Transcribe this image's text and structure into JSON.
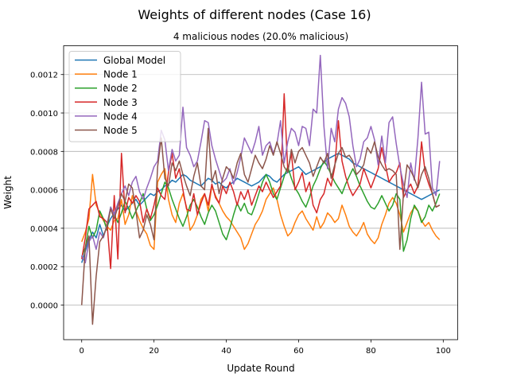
{
  "chart_data": {
    "type": "line",
    "title": "Weights of different nodes (Case 16)",
    "subtitle": "4 malicious nodes (20.0% malicious)",
    "xlabel": "Update Round",
    "ylabel": "Weight",
    "xlim": [
      -5,
      104
    ],
    "ylim": [
      -0.00018,
      0.00135
    ],
    "x_ticks": [
      0,
      20,
      40,
      60,
      80,
      100
    ],
    "y_ticks": [
      0.0,
      0.0002,
      0.0004,
      0.0006,
      0.0008,
      0.001,
      0.0012
    ],
    "y_tick_labels": [
      "0.0000",
      "0.0002",
      "0.0004",
      "0.0006",
      "0.0008",
      "0.0010",
      "0.0012"
    ],
    "grid": "horizontal",
    "legend_position": "top-left",
    "series": [
      {
        "name": "Global Model",
        "color": "#1f77b4",
        "values": [
          0.00022,
          0.00028,
          0.00034,
          0.00038,
          0.00035,
          0.00042,
          0.00036,
          0.00041,
          0.00045,
          0.00048,
          0.0005,
          0.00052,
          0.00049,
          0.00051,
          0.00053,
          0.00055,
          0.00052,
          0.00054,
          0.00056,
          0.00058,
          0.00057,
          0.00059,
          0.0006,
          0.00062,
          0.00063,
          0.00065,
          0.00064,
          0.00066,
          0.00068,
          0.00067,
          0.00065,
          0.00064,
          0.00063,
          0.00062,
          0.00064,
          0.00066,
          0.00065,
          0.00063,
          0.00064,
          0.00062,
          0.00061,
          0.00063,
          0.00064,
          0.00066,
          0.00065,
          0.00064,
          0.00063,
          0.00062,
          0.00063,
          0.00064,
          0.00066,
          0.00068,
          0.00067,
          0.00065,
          0.00064,
          0.00066,
          0.00068,
          0.00069,
          0.0007,
          0.00071,
          0.00072,
          0.0007,
          0.00068,
          0.00069,
          0.0007,
          0.00071,
          0.00072,
          0.00074,
          0.00076,
          0.00077,
          0.00078,
          0.00079,
          0.00078,
          0.00077,
          0.00076,
          0.00074,
          0.00073,
          0.00072,
          0.00071,
          0.0007,
          0.00069,
          0.00068,
          0.00067,
          0.00066,
          0.00065,
          0.00064,
          0.00063,
          0.00062,
          0.00061,
          0.0006,
          0.00059,
          0.00058,
          0.00057,
          0.00056,
          0.00055,
          0.00056,
          0.00057,
          0.00058,
          0.00059,
          0.0006
        ]
      },
      {
        "name": "Node 1",
        "color": "#ff7f0e",
        "values": [
          0.00033,
          0.00038,
          0.00045,
          0.00068,
          0.00052,
          0.00048,
          0.00044,
          0.00041,
          0.00039,
          0.00044,
          0.00045,
          0.00055,
          0.00042,
          0.00047,
          0.00057,
          0.00049,
          0.00044,
          0.0004,
          0.00037,
          0.00031,
          0.00029,
          0.00064,
          0.00068,
          0.00071,
          0.00055,
          0.00047,
          0.00043,
          0.00053,
          0.00058,
          0.00051,
          0.00039,
          0.00042,
          0.00047,
          0.00055,
          0.00058,
          0.00049,
          0.00062,
          0.00057,
          0.00053,
          0.00049,
          0.00046,
          0.00044,
          0.00041,
          0.00038,
          0.00035,
          0.00029,
          0.00032,
          0.00037,
          0.00042,
          0.00045,
          0.00049,
          0.00055,
          0.00058,
          0.00061,
          0.00055,
          0.00047,
          0.00041,
          0.00036,
          0.00038,
          0.00043,
          0.00047,
          0.00049,
          0.00045,
          0.00042,
          0.00039,
          0.00046,
          0.0004,
          0.00043,
          0.00048,
          0.00046,
          0.00043,
          0.00045,
          0.00052,
          0.00047,
          0.00041,
          0.00038,
          0.00036,
          0.00039,
          0.00043,
          0.00037,
          0.00034,
          0.00032,
          0.00035,
          0.00042,
          0.00047,
          0.00053,
          0.00056,
          0.00053,
          0.00047,
          0.00038,
          0.00043,
          0.00048,
          0.00051,
          0.00049,
          0.00044,
          0.00041,
          0.00043,
          0.00039,
          0.00036,
          0.00034
        ]
      },
      {
        "name": "Node 2",
        "color": "#2ca02c",
        "values": [
          0.00025,
          0.0003,
          0.00041,
          0.00035,
          0.00039,
          0.00049,
          0.00045,
          0.00039,
          0.00051,
          0.00047,
          0.00043,
          0.00048,
          0.00054,
          0.0005,
          0.00045,
          0.00049,
          0.00053,
          0.00058,
          0.0005,
          0.00044,
          0.00047,
          0.00052,
          0.00058,
          0.00064,
          0.00061,
          0.00055,
          0.0005,
          0.00045,
          0.00041,
          0.00046,
          0.00052,
          0.00055,
          0.00051,
          0.00046,
          0.00042,
          0.00048,
          0.00052,
          0.00049,
          0.00043,
          0.00037,
          0.00034,
          0.0004,
          0.00047,
          0.00053,
          0.00049,
          0.00053,
          0.00048,
          0.00047,
          0.00052,
          0.00058,
          0.00064,
          0.00068,
          0.00064,
          0.00058,
          0.00055,
          0.00061,
          0.00067,
          0.00072,
          0.00066,
          0.00061,
          0.00058,
          0.00054,
          0.00051,
          0.00056,
          0.00062,
          0.00066,
          0.00071,
          0.00075,
          0.00072,
          0.00068,
          0.00064,
          0.00061,
          0.00058,
          0.00063,
          0.00067,
          0.00071,
          0.00067,
          0.00062,
          0.00058,
          0.00054,
          0.00051,
          0.0005,
          0.00053,
          0.00057,
          0.00053,
          0.00049,
          0.00052,
          0.00058,
          0.00055,
          0.00028,
          0.00034,
          0.00045,
          0.00052,
          0.00049,
          0.00043,
          0.00046,
          0.00052,
          0.00049,
          0.00053,
          0.00058
        ]
      },
      {
        "name": "Node 3",
        "color": "#d62728",
        "values": [
          0.00024,
          0.00035,
          0.0005,
          0.00052,
          0.00054,
          0.00046,
          0.00045,
          0.00043,
          0.00019,
          0.00057,
          0.00024,
          0.00079,
          0.00048,
          0.00056,
          0.00053,
          0.00057,
          0.00054,
          0.00043,
          0.0005,
          0.00045,
          0.00052,
          0.00061,
          0.00057,
          0.00055,
          0.00069,
          0.00079,
          0.00066,
          0.00071,
          0.0006,
          0.0005,
          0.00049,
          0.00058,
          0.00047,
          0.00053,
          0.00058,
          0.00052,
          0.00063,
          0.00056,
          0.00053,
          0.00062,
          0.00058,
          0.00064,
          0.00059,
          0.00052,
          0.00059,
          0.00055,
          0.0006,
          0.00052,
          0.00057,
          0.00062,
          0.00059,
          0.00064,
          0.0006,
          0.00056,
          0.00059,
          0.00062,
          0.0011,
          0.0007,
          0.00079,
          0.0006,
          0.00064,
          0.00069,
          0.00059,
          0.00064,
          0.00052,
          0.00048,
          0.00055,
          0.00058,
          0.00066,
          0.00062,
          0.00072,
          0.00096,
          0.00075,
          0.00067,
          0.00061,
          0.00057,
          0.0006,
          0.00063,
          0.00071,
          0.00066,
          0.00061,
          0.00066,
          0.00071,
          0.00082,
          0.00073,
          0.00064,
          0.00067,
          0.00069,
          0.00074,
          0.00056,
          0.0006,
          0.00063,
          0.00058,
          0.00062,
          0.00085,
          0.00069,
          0.00063,
          0.00058,
          0.00051,
          0.00052
        ]
      },
      {
        "name": "Node 4",
        "color": "#9467bd",
        "values": [
          0.00026,
          0.00022,
          0.00033,
          0.00036,
          0.00029,
          0.00038,
          0.00035,
          0.00042,
          0.00051,
          0.00047,
          0.00053,
          0.00058,
          0.00062,
          0.00057,
          0.00064,
          0.00067,
          0.00059,
          0.00055,
          0.00061,
          0.00066,
          0.00072,
          0.00075,
          0.00091,
          0.00086,
          0.0007,
          0.00081,
          0.00075,
          0.00078,
          0.00103,
          0.00082,
          0.00078,
          0.00072,
          0.00075,
          0.00085,
          0.00096,
          0.00095,
          0.00083,
          0.00076,
          0.0007,
          0.00064,
          0.00066,
          0.00071,
          0.00063,
          0.00069,
          0.00077,
          0.00087,
          0.00083,
          0.00079,
          0.00085,
          0.00093,
          0.00078,
          0.00083,
          0.00085,
          0.00079,
          0.00084,
          0.00096,
          0.00074,
          0.00085,
          0.00092,
          0.0009,
          0.00083,
          0.00093,
          0.00092,
          0.00083,
          0.00102,
          0.001,
          0.0013,
          0.00093,
          0.00071,
          0.00092,
          0.00085,
          0.00102,
          0.00108,
          0.00105,
          0.00098,
          0.00083,
          0.00072,
          0.00076,
          0.00085,
          0.00087,
          0.00093,
          0.00086,
          0.00073,
          0.00088,
          0.00074,
          0.00095,
          0.00098,
          0.00084,
          0.00072,
          0.00063,
          0.00056,
          0.00074,
          0.00065,
          0.00087,
          0.00116,
          0.00089,
          0.0009,
          0.00061,
          0.00057,
          0.00075
        ]
      },
      {
        "name": "Node 5",
        "color": "#8c564b",
        "values": [
          0.0,
          0.0003,
          0.00036,
          -0.0001,
          0.00015,
          0.00033,
          0.00036,
          0.00041,
          0.0005,
          0.00045,
          0.00051,
          0.00058,
          0.00054,
          0.00063,
          0.00061,
          0.00049,
          0.00035,
          0.00039,
          0.00047,
          0.00042,
          0.00034,
          0.00072,
          0.00087,
          0.00066,
          0.00062,
          0.00074,
          0.0007,
          0.00075,
          0.00068,
          0.00062,
          0.00057,
          0.00067,
          0.00074,
          0.00062,
          0.0006,
          0.00092,
          0.00064,
          0.0007,
          0.00058,
          0.00066,
          0.00072,
          0.0007,
          0.00066,
          0.00074,
          0.00079,
          0.00068,
          0.00064,
          0.00071,
          0.00078,
          0.00074,
          0.00071,
          0.00076,
          0.00083,
          0.00078,
          0.00085,
          0.00079,
          0.00072,
          0.00069,
          0.00081,
          0.00074,
          0.0008,
          0.00082,
          0.00078,
          0.00074,
          0.00067,
          0.00072,
          0.00077,
          0.00074,
          0.00079,
          0.00066,
          0.00073,
          0.00079,
          0.00082,
          0.00077,
          0.00078,
          0.00075,
          0.00068,
          0.0007,
          0.00073,
          0.00082,
          0.00079,
          0.00085,
          0.00077,
          0.00073,
          0.0007,
          0.00071,
          0.0007,
          0.00068,
          0.00029,
          0.00058,
          0.00073,
          0.0007,
          0.00066,
          0.00061,
          0.00068,
          0.00072,
          0.00066,
          0.00058,
          0.00051,
          0.00052
        ]
      }
    ]
  }
}
